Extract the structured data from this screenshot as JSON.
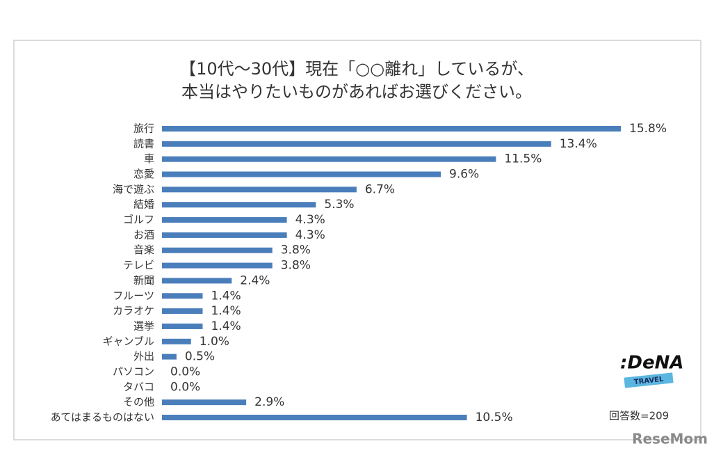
{
  "chart_data": {
    "type": "bar",
    "orientation": "horizontal",
    "title": [
      "【10代～30代】現在「○○離れ」しているが、",
      "本当はやりたいものがあればお選びください。"
    ],
    "categories": [
      "旅行",
      "読書",
      "車",
      "恋愛",
      "海で遊ぶ",
      "結婚",
      "ゴルフ",
      "お酒",
      "音楽",
      "テレビ",
      "新聞",
      "フルーツ",
      "カラオケ",
      "選挙",
      "ギャンブル",
      "外出",
      "パソコン",
      "タバコ",
      "その他",
      "あてはまるものはない"
    ],
    "values": [
      15.8,
      13.4,
      11.5,
      9.6,
      6.7,
      5.3,
      4.3,
      4.3,
      3.8,
      3.8,
      2.4,
      1.4,
      1.4,
      1.4,
      1.0,
      0.5,
      0.0,
      0.0,
      2.9,
      10.5
    ],
    "value_labels": [
      "15.8%",
      "13.4%",
      "11.5%",
      "9.6%",
      "6.7%",
      "5.3%",
      "4.3%",
      "4.3%",
      "3.8%",
      "3.8%",
      "2.4%",
      "1.4%",
      "1.4%",
      "1.4%",
      "1.0%",
      "0.5%",
      "0.0%",
      "0.0%",
      "2.9%",
      "10.5%"
    ],
    "color": "#4a7ebb",
    "note": "回答数=209"
  },
  "logo": {
    "brand": ":DeNA",
    "sub": "TRAVEL"
  },
  "watermark": "ReseMom"
}
